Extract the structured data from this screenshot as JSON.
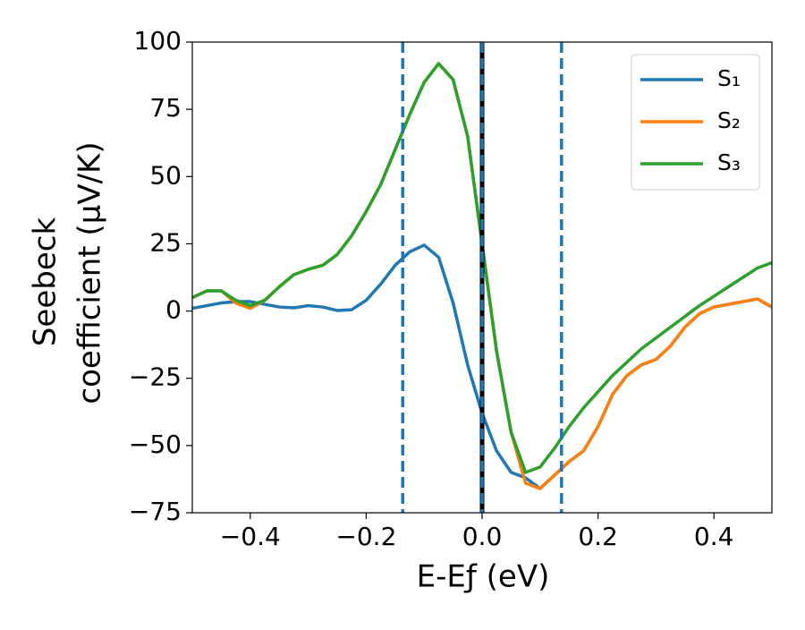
{
  "chart_data": {
    "type": "line",
    "xlabel": "E-Eƒ (eV)",
    "ylabel": [
      "Seebeck",
      "coefficient  (μV/K)"
    ],
    "x": [
      -0.5,
      -0.475,
      -0.45,
      -0.425,
      -0.4,
      -0.375,
      -0.35,
      -0.325,
      -0.3,
      -0.275,
      -0.25,
      -0.225,
      -0.2,
      -0.175,
      -0.15,
      -0.125,
      -0.1,
      -0.075,
      -0.05,
      -0.025,
      0,
      0.025,
      0.05,
      0.075,
      0.1,
      0.125,
      0.15,
      0.175,
      0.2,
      0.225,
      0.25,
      0.275,
      0.3,
      0.325,
      0.35,
      0.375,
      0.4,
      0.425,
      0.45,
      0.475,
      0.5
    ],
    "series": [
      {
        "name": "S₁",
        "color": "#1f77b4",
        "values": [
          1,
          2,
          3,
          3.5,
          3.5,
          2.5,
          1.5,
          1.2,
          2,
          1.5,
          0.2,
          0.5,
          4,
          10,
          17,
          22,
          24.5,
          20,
          3,
          -20,
          -38,
          -52,
          -60,
          -62,
          -66,
          -61,
          -56,
          -52,
          -43,
          -31,
          -24,
          -20,
          -18,
          -13,
          -6,
          -1,
          1.5,
          2.5,
          3.5,
          4.5,
          1.5
        ]
      },
      {
        "name": "S₂",
        "color": "#ff7f0e",
        "values": [
          5,
          7.5,
          7.5,
          3,
          1,
          4,
          9,
          13.5,
          15.5,
          17,
          21,
          28,
          37,
          47,
          60,
          73,
          85,
          92,
          86,
          65,
          25,
          -15,
          -45,
          -64,
          -66,
          -61,
          -56,
          -52,
          -43,
          -31,
          -24,
          -20,
          -18,
          -13,
          -6,
          -1,
          1.5,
          2.5,
          3.5,
          4.5,
          1.5
        ]
      },
      {
        "name": "S₃",
        "color": "#2ca02c",
        "values": [
          5,
          7.5,
          7.5,
          4,
          2,
          4,
          9,
          13.5,
          15.5,
          17,
          21,
          28,
          37,
          47,
          60,
          73,
          85,
          92,
          86,
          65,
          25,
          -15,
          -45,
          -60,
          -58,
          -51,
          -43,
          -36,
          -30,
          -24,
          -19,
          -14,
          -10,
          -6,
          -2,
          2,
          5.5,
          9,
          12.5,
          16,
          18
        ]
      }
    ],
    "vlines": [
      {
        "x": 0,
        "color": "#000000",
        "style": "solid"
      },
      {
        "x": -0.137,
        "color": "#1f77b4",
        "style": "dashed"
      },
      {
        "x": 0,
        "color": "#1f77b4",
        "style": "dashed"
      },
      {
        "x": 0.137,
        "color": "#1f77b4",
        "style": "dashed"
      }
    ],
    "xlim": [
      -0.5,
      0.5
    ],
    "xticks": [
      {
        "value": -0.4,
        "label": "−0.4"
      },
      {
        "value": -0.2,
        "label": "−0.2"
      },
      {
        "value": 0,
        "label": "0.0"
      },
      {
        "value": 0.2,
        "label": "0.2"
      },
      {
        "value": 0.4,
        "label": "0.4"
      }
    ],
    "ylim": [
      -75,
      100
    ],
    "yticks": [
      {
        "value": -75,
        "label": "−75"
      },
      {
        "value": -50,
        "label": "−50"
      },
      {
        "value": -25,
        "label": "−25"
      },
      0,
      25,
      50,
      75,
      100
    ],
    "grid": false,
    "legend": "upper right"
  }
}
